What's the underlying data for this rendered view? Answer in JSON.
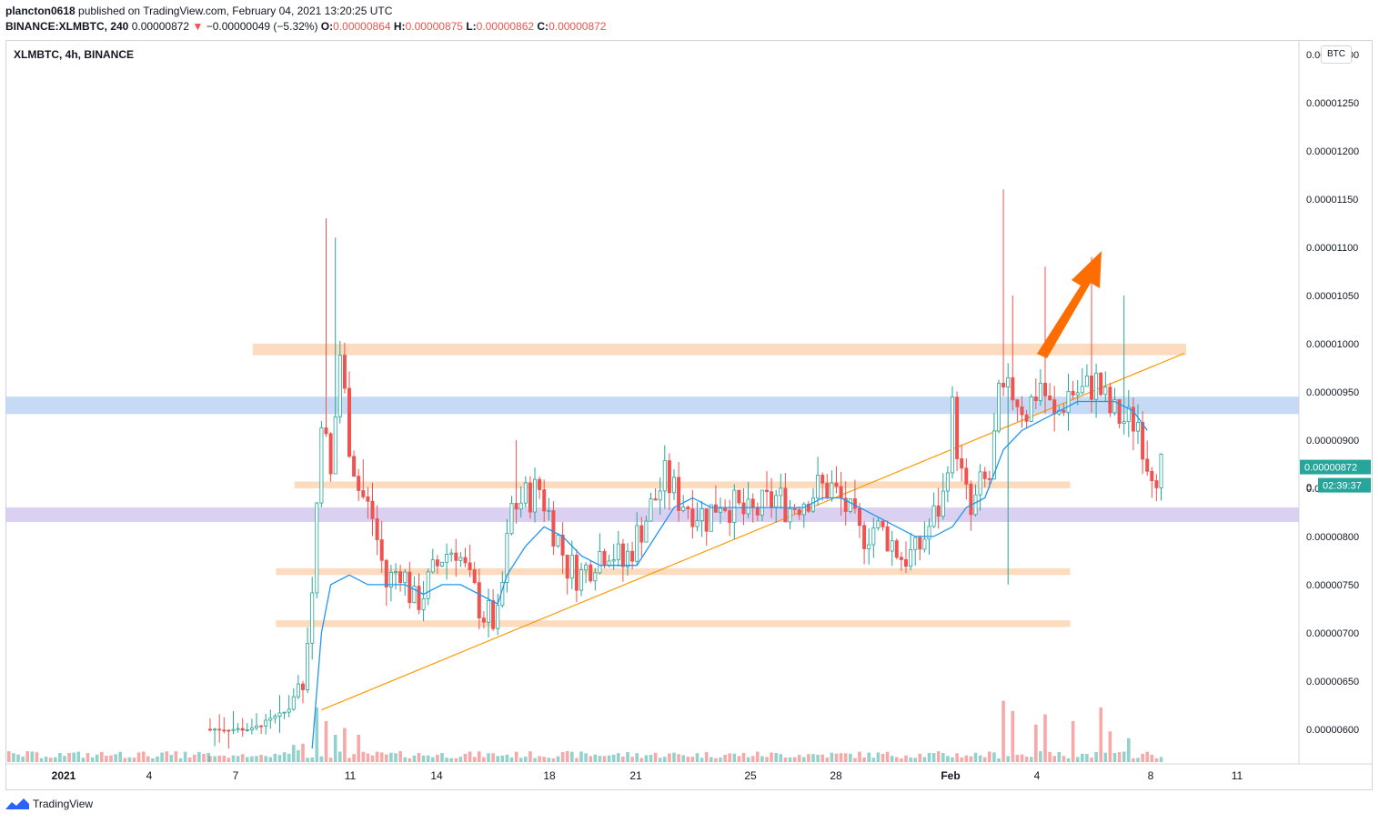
{
  "header": {
    "publisher": "plancton0618",
    "published_text": "published on TradingView.com, February 04, 2021 13:20:25 UTC",
    "symbol": "BINANCE:XLMBTC, 240",
    "last_price": "0.00000872",
    "change_arrow": "▼",
    "change": "−0.00000049 (−5.32%)",
    "o_label": "O:",
    "o_value": "0.00000864",
    "h_label": "H:",
    "h_value": "0.00000875",
    "l_label": "L:",
    "l_value": "0.00000862",
    "c_label": "C:",
    "c_value": "0.00000872"
  },
  "chart": {
    "symbol_label": "XLMBTC, 4h, BINANCE",
    "currency": "BTC",
    "price_badge": "0.00000872",
    "countdown_badge": "02:39:37",
    "countdown_prefix": "0.",
    "colors": {
      "up": "#26a69a",
      "down": "#ef5350",
      "ma": "#2196f3",
      "trendline": "#ff9800",
      "arrow": "#ff6d00",
      "band_orange": "#fbd5b3",
      "band_blue": "#bcd3f5",
      "band_purple": "#d3c8ee"
    }
  },
  "chart_data": {
    "type": "candlestick",
    "title": "XLMBTC, 4h, BINANCE",
    "ylabel": "BTC",
    "ylim": [
      5.65e-06,
      1.315e-05
    ],
    "y_ticks": [
      "0.00001300",
      "0.00001250",
      "0.00001200",
      "0.00001150",
      "0.00001100",
      "0.00001050",
      "0.00001000",
      "0.00000950",
      "0.00000900",
      "0.00000850",
      "0.00000800",
      "0.00000750",
      "0.00000700",
      "0.00000650",
      "0.00000600"
    ],
    "x_ticks": [
      "2021",
      "4",
      "7",
      "11",
      "14",
      "18",
      "21",
      "25",
      "28",
      "Feb",
      "4",
      "8",
      "11"
    ],
    "last": 8.72e-06,
    "ohlc_path": [
      [
        0,
        6e-06
      ],
      [
        10,
        6e-06
      ],
      [
        18,
        6.2e-06
      ],
      [
        21,
        6.6e-06
      ],
      [
        23,
        7.4e-06
      ],
      [
        25,
        9.3e-06
      ],
      [
        27,
        8.6e-06
      ],
      [
        29,
        9.9e-06
      ],
      [
        31,
        9e-06
      ],
      [
        33,
        8.5e-06
      ],
      [
        36,
        8.2e-06
      ],
      [
        39,
        7.5e-06
      ],
      [
        42,
        7.7e-06
      ],
      [
        45,
        7.3e-06
      ],
      [
        48,
        7.5e-06
      ],
      [
        51,
        7.8e-06
      ],
      [
        54,
        7.9e-06
      ],
      [
        57,
        7.5e-06
      ],
      [
        60,
        7.2e-06
      ],
      [
        63,
        7.1e-06
      ],
      [
        66,
        8.3e-06
      ],
      [
        69,
        8.4e-06
      ],
      [
        72,
        8.5e-06
      ],
      [
        75,
        8.1e-06
      ],
      [
        78,
        7.7e-06
      ],
      [
        81,
        7.6e-06
      ],
      [
        84,
        7.8e-06
      ],
      [
        87,
        7.9e-06
      ],
      [
        90,
        7.7e-06
      ],
      [
        93,
        8e-06
      ],
      [
        96,
        8.3e-06
      ],
      [
        99,
        8.6e-06
      ],
      [
        102,
        8.4e-06
      ],
      [
        105,
        8.3e-06
      ],
      [
        108,
        8.2e-06
      ],
      [
        111,
        8.4e-06
      ],
      [
        114,
        8.3e-06
      ],
      [
        117,
        8.2e-06
      ],
      [
        120,
        8.3e-06
      ],
      [
        123,
        8.4e-06
      ],
      [
        126,
        8.3e-06
      ],
      [
        129,
        8.4e-06
      ],
      [
        132,
        8.5e-06
      ],
      [
        135,
        8.5e-06
      ],
      [
        138,
        8.3e-06
      ],
      [
        141,
        8e-06
      ],
      [
        144,
        8.1e-06
      ],
      [
        147,
        8e-06
      ],
      [
        150,
        7.8e-06
      ],
      [
        153,
        7.8e-06
      ],
      [
        156,
        8.1e-06
      ],
      [
        159,
        8.4e-06
      ],
      [
        161,
        9.3e-06
      ],
      [
        163,
        8.6e-06
      ],
      [
        165,
        8.2e-06
      ],
      [
        167,
        8.5e-06
      ],
      [
        169,
        8.6e-06
      ],
      [
        171,
        9.4e-06
      ],
      [
        174,
        9.5e-06
      ],
      [
        177,
        9.3e-06
      ],
      [
        180,
        9.6e-06
      ],
      [
        183,
        9.2e-06
      ],
      [
        186,
        9.5e-06
      ],
      [
        189,
        9.5e-06
      ],
      [
        192,
        9.6e-06
      ],
      [
        195,
        9.3e-06
      ],
      [
        198,
        9.2e-06
      ],
      [
        201,
        9.2e-06
      ],
      [
        203,
        8.8e-06
      ],
      [
        205,
        8.7e-06
      ]
    ],
    "ma_path": [
      [
        22,
        5.8e-06
      ],
      [
        24,
        7e-06
      ],
      [
        26,
        7.5e-06
      ],
      [
        30,
        7.6e-06
      ],
      [
        34,
        7.5e-06
      ],
      [
        38,
        7.5e-06
      ],
      [
        42,
        7.5e-06
      ],
      [
        46,
        7.4e-06
      ],
      [
        50,
        7.5e-06
      ],
      [
        54,
        7.5e-06
      ],
      [
        58,
        7.4e-06
      ],
      [
        62,
        7.3e-06
      ],
      [
        64,
        7.6e-06
      ],
      [
        68,
        7.9e-06
      ],
      [
        72,
        8.1e-06
      ],
      [
        76,
        8e-06
      ],
      [
        80,
        7.8e-06
      ],
      [
        84,
        7.7e-06
      ],
      [
        88,
        7.7e-06
      ],
      [
        92,
        7.7e-06
      ],
      [
        96,
        8e-06
      ],
      [
        100,
        8.3e-06
      ],
      [
        104,
        8.4e-06
      ],
      [
        108,
        8.3e-06
      ],
      [
        112,
        8.3e-06
      ],
      [
        116,
        8.3e-06
      ],
      [
        120,
        8.3e-06
      ],
      [
        124,
        8.3e-06
      ],
      [
        128,
        8.3e-06
      ],
      [
        132,
        8.4e-06
      ],
      [
        136,
        8.4e-06
      ],
      [
        140,
        8.3e-06
      ],
      [
        144,
        8.2e-06
      ],
      [
        148,
        8.1e-06
      ],
      [
        152,
        8e-06
      ],
      [
        156,
        8e-06
      ],
      [
        160,
        8.1e-06
      ],
      [
        163,
        8.3e-06
      ],
      [
        167,
        8.4e-06
      ],
      [
        171,
        8.9e-06
      ],
      [
        175,
        9.1e-06
      ],
      [
        179,
        9.2e-06
      ],
      [
        183,
        9.3e-06
      ],
      [
        187,
        9.4e-06
      ],
      [
        191,
        9.4e-06
      ],
      [
        195,
        9.4e-06
      ],
      [
        199,
        9.3e-06
      ],
      [
        202,
        9.1e-06
      ]
    ],
    "volume_spikes": [
      [
        19,
        1
      ],
      [
        21,
        0.95
      ],
      [
        23,
        0.8
      ],
      [
        25,
        0.6
      ],
      [
        27,
        0.4
      ],
      [
        29,
        0.5
      ],
      [
        32,
        0.4
      ],
      [
        171,
        0.9
      ],
      [
        173,
        0.75
      ],
      [
        178,
        0.55
      ],
      [
        180,
        0.7
      ],
      [
        186,
        0.6
      ],
      [
        192,
        0.8
      ],
      [
        194,
        0.45
      ],
      [
        198,
        0.35
      ]
    ],
    "zones": [
      {
        "color": "band_orange",
        "y0": 1e-05,
        "y1": 9.88e-06,
        "x0": 18,
        "x1": 210
      },
      {
        "color": "band_blue",
        "y0": 9.45e-06,
        "y1": 9.27e-06,
        "x0": -1,
        "x1": 999
      },
      {
        "color": "band_orange",
        "y0": 8.57e-06,
        "y1": 8.5e-06,
        "x0": 27,
        "x1": 185
      },
      {
        "color": "band_purple",
        "y0": 8.3e-06,
        "y1": 8.15e-06,
        "x0": -1,
        "x1": 999
      },
      {
        "color": "band_orange",
        "y0": 7.67e-06,
        "y1": 7.6e-06,
        "x0": 23,
        "x1": 185
      },
      {
        "color": "band_orange",
        "y0": 7.13e-06,
        "y1": 7.06e-06,
        "x0": 23,
        "x1": 185
      }
    ],
    "trendline": [
      [
        24,
        6.2e-06
      ],
      [
        210,
        9.9e-06
      ]
    ],
    "annotation_arrow": "upward arrow"
  },
  "footer": {
    "brand": "TradingView"
  }
}
